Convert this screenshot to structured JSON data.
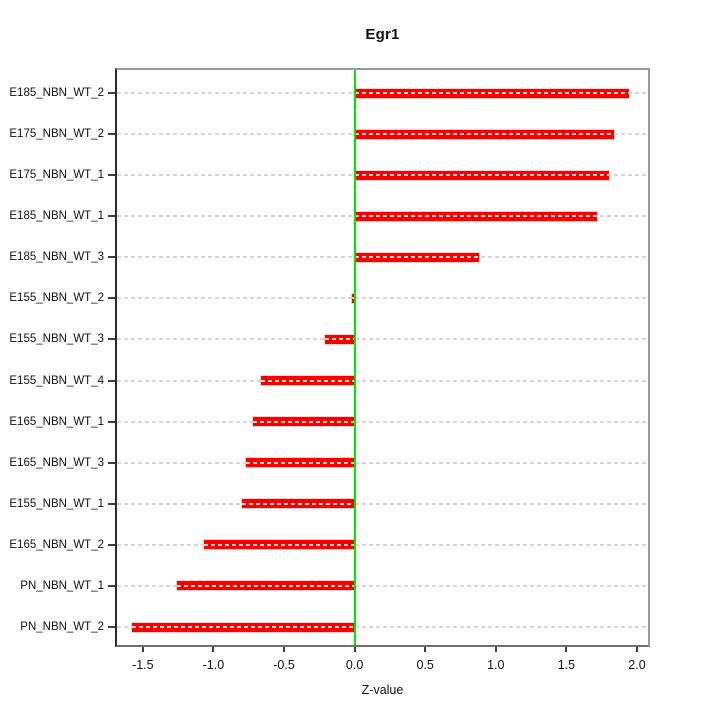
{
  "chart_data": {
    "type": "bar",
    "orientation": "horizontal",
    "title": "Egr1",
    "xlabel": "Z-value",
    "categories": [
      "E185_NBN_WT_2",
      "E175_NBN_WT_2",
      "E175_NBN_WT_1",
      "E185_NBN_WT_1",
      "E185_NBN_WT_3",
      "E155_NBN_WT_2",
      "E155_NBN_WT_3",
      "E155_NBN_WT_4",
      "E165_NBN_WT_1",
      "E165_NBN_WT_3",
      "E155_NBN_WT_1",
      "E165_NBN_WT_2",
      "PN_NBN_WT_1",
      "PN_NBN_WT_2"
    ],
    "values": [
      1.94,
      1.84,
      1.8,
      1.72,
      0.88,
      -0.02,
      -0.21,
      -0.66,
      -0.72,
      -0.77,
      -0.8,
      -1.07,
      -1.26,
      -1.58
    ],
    "xticks": [
      -1.5,
      -1.0,
      -0.5,
      0.0,
      0.5,
      1.0,
      1.5,
      2.0
    ],
    "xtick_labels": [
      "-1.5",
      "-1.0",
      "-0.5",
      "0.0",
      "0.5",
      "1.0",
      "1.5",
      "2.0"
    ],
    "xlim": [
      -1.683,
      2.078
    ],
    "bar_color": "#f60000",
    "zero_line_color": "#00e600",
    "grid_color": "#d7d7d7",
    "grid_style": "dashed",
    "legend": "none"
  }
}
